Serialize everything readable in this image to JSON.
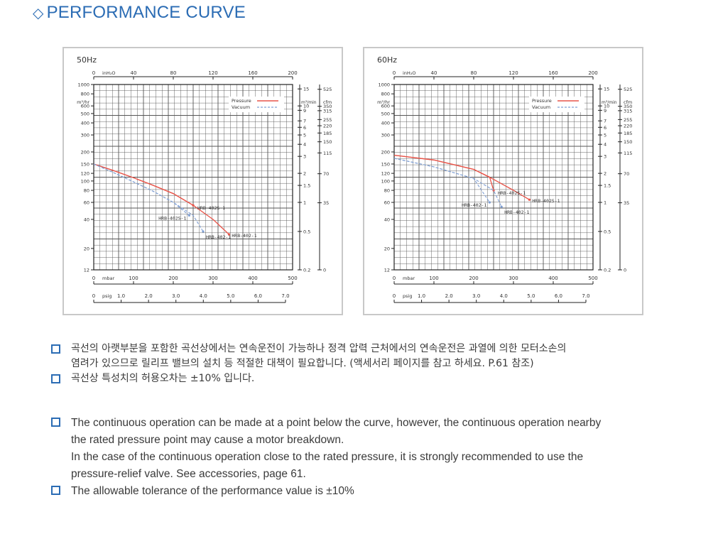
{
  "header": {
    "title": "PERFORMANCE CURVE",
    "icon": "diamond-icon"
  },
  "axis_labels": {
    "inh2o_unit": "inH₂O",
    "inh2o_ticks": [
      "0",
      "40",
      "80",
      "120",
      "160",
      "200"
    ],
    "mbar_unit": "mbar",
    "mbar_ticks": [
      "0",
      "100",
      "200",
      "300",
      "400",
      "500"
    ],
    "psig_unit": "psig",
    "psig_ticks": [
      "0",
      "1.0",
      "2.0",
      "3.0",
      "4.0",
      "5.0",
      "6.0",
      "7.0"
    ],
    "m3hr_unit": "m³/hr",
    "m3hr_ticks": [
      "1000",
      "800",
      "600",
      "500",
      "400",
      "300",
      "200",
      "150",
      "120",
      "100",
      "80",
      "60",
      "40",
      "20",
      "12"
    ],
    "m3min_unit": "m³/min",
    "m3min_ticks": [
      "15",
      "10",
      "9",
      "7",
      "6",
      "5",
      "4",
      "3",
      "2",
      "1.5",
      "1",
      "0.5",
      "0.2"
    ],
    "cfm_unit": "cfm",
    "cfm_ticks": [
      "525",
      "350",
      "315",
      "255",
      "220",
      "185",
      "150",
      "115",
      "70",
      "35",
      "0"
    ]
  },
  "chart_data": [
    {
      "type": "line",
      "title": "50Hz",
      "xlabel": "mbar",
      "ylabel": "m³/hr",
      "xlim": [
        0,
        500
      ],
      "ylim": [
        12,
        1000
      ],
      "yscale": "log",
      "legend": {
        "position": "top-right",
        "entries": [
          "Pressure",
          "Vacuum"
        ]
      },
      "colors": {
        "Pressure": "#e8554a",
        "Vacuum": "#7f9fd3"
      },
      "series": [
        {
          "name": "HRB-402-1",
          "style": "Pressure",
          "x": [
            0,
            50,
            100,
            150,
            200,
            250,
            300,
            340
          ],
          "y": [
            150,
            128,
            108,
            90,
            74,
            56,
            40,
            28
          ]
        },
        {
          "name": "HRB-402S-1",
          "style": "Pressure",
          "x": [
            0,
            50,
            100,
            150,
            200,
            250
          ],
          "y": [
            150,
            128,
            108,
            90,
            74,
            56
          ]
        },
        {
          "name": "HRB-402S-1",
          "style": "Vacuum",
          "x": [
            0,
            50,
            100,
            150,
            200,
            240
          ],
          "y": [
            150,
            122,
            98,
            78,
            60,
            44
          ]
        },
        {
          "name": "HRB-402-1",
          "style": "Vacuum",
          "x": [
            0,
            50,
            100,
            150,
            200,
            250,
            275
          ],
          "y": [
            150,
            122,
            98,
            78,
            60,
            44,
            30
          ]
        }
      ],
      "annotations": [
        "HRB-402S-1",
        "HRB-402S-1",
        "HRB-402-1",
        "HRB-402-1"
      ]
    },
    {
      "type": "line",
      "title": "60Hz",
      "xlabel": "mbar",
      "ylabel": "m³/hr",
      "xlim": [
        0,
        500
      ],
      "ylim": [
        12,
        1000
      ],
      "yscale": "log",
      "legend": {
        "position": "top-right",
        "entries": [
          "Pressure",
          "Vacuum"
        ]
      },
      "colors": {
        "Pressure": "#e8554a",
        "Vacuum": "#7f9fd3"
      },
      "series": [
        {
          "name": "HRB-402-1",
          "style": "Pressure",
          "x": [
            0,
            100,
            200,
            250,
            300,
            340
          ],
          "y": [
            185,
            165,
            132,
            104,
            80,
            64
          ]
        },
        {
          "name": "HRB-402S-1",
          "style": "Pressure",
          "x": [
            0,
            100,
            200,
            240,
            250
          ],
          "y": [
            185,
            165,
            132,
            110,
            80
          ]
        },
        {
          "name": "HRB-402S-1",
          "style": "Vacuum",
          "x": [
            0,
            100,
            200,
            240
          ],
          "y": [
            172,
            140,
            106,
            60
          ]
        },
        {
          "name": "HRB-402-1",
          "style": "Vacuum",
          "x": [
            0,
            100,
            200,
            250,
            270
          ],
          "y": [
            172,
            140,
            106,
            80,
            54
          ]
        }
      ],
      "annotations": [
        "HRB-402S-1",
        "HRB-402-1",
        "HRB-402S-1",
        "HRB-402-1"
      ]
    }
  ],
  "notes_kr": [
    "곡선의 아랫부분을 포함한 곡선상에서는 연속운전이 가능하나 정격 압력 근처에서의 연속운전은 과열에 의한 모터소손의",
    "염려가 있으므로 릴리프 밸브의 설치 등 적절한 대책이 필요합니다. (액세서리 페이지를 참고 하세요. P.61 참조)",
    "곡선상 특성치의 허용오차는 ±10% 입니다."
  ],
  "notes_en": [
    "The continuous operation can be made at a point below the curve, however, the continuous operation nearby",
    "the rated pressure point may cause a motor breakdown.",
    "In the case of the continuous operation close to the rated pressure, it is strongly recommended to use the",
    "pressure-relief valve. See accessories, page 61.",
    "The allowable tolerance of the performance value is ±10%"
  ]
}
